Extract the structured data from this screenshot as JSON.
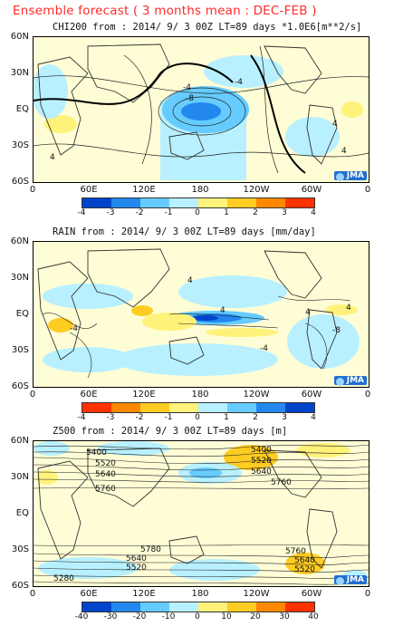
{
  "title": "Ensemble forecast ( 3 months mean : DEC-FEB )",
  "colors": {
    "title": "#ff2a2a",
    "map_background": "#fffdd6",
    "land": "#333333",
    "blue_scale": [
      "#0044cc",
      "#2288ee",
      "#66ccff",
      "#b8f0ff"
    ],
    "warm_scale": [
      "#fff27a",
      "#ffcc22",
      "#ff8800",
      "#ff3300"
    ]
  },
  "axes": {
    "lat_labels": [
      "60N",
      "30N",
      "EQ",
      "30S",
      "60S"
    ],
    "lon_labels": [
      "0",
      "60E",
      "120E",
      "180",
      "120W",
      "60W",
      "0"
    ]
  },
  "badge": "JMA",
  "panels": [
    {
      "id": "chi200",
      "heading": "CHI200  from : 2014/ 9/ 3 00Z LT=89 days  *1.0E6[m**2/s]",
      "contour_labels": [
        "4",
        "-4",
        "-8",
        "4",
        "4",
        "-4"
      ],
      "colorbar_labels": [
        "-4",
        "-3",
        "-2",
        "-1",
        "0",
        "1",
        "2",
        "3",
        "4"
      ],
      "colorbar_order": "blue-to-red"
    },
    {
      "id": "rain",
      "heading": "RAIN  from : 2014/ 9/ 3 00Z LT=89 days  [mm/day]",
      "contour_labels": [
        "4",
        "4",
        "-4",
        "4",
        "-4",
        "-8",
        "4"
      ],
      "colorbar_labels": [
        "-4",
        "-3",
        "-2",
        "-1",
        "0",
        "1",
        "2",
        "3",
        "4"
      ],
      "colorbar_order": "red-to-blue"
    },
    {
      "id": "z500",
      "heading": "Z500  from : 2014/ 9/ 3 00Z LT=89 days  [m]",
      "contour_labels": [
        "5400",
        "5520",
        "5640",
        "5760",
        "5400",
        "5520",
        "5640",
        "5760",
        "5780",
        "5640",
        "5520",
        "5280",
        "5760",
        "5640",
        "5520"
      ],
      "colorbar_labels": [
        "-40",
        "-30",
        "-20",
        "-10",
        "0",
        "10",
        "20",
        "30",
        "40"
      ],
      "colorbar_order": "blue-to-red"
    }
  ]
}
